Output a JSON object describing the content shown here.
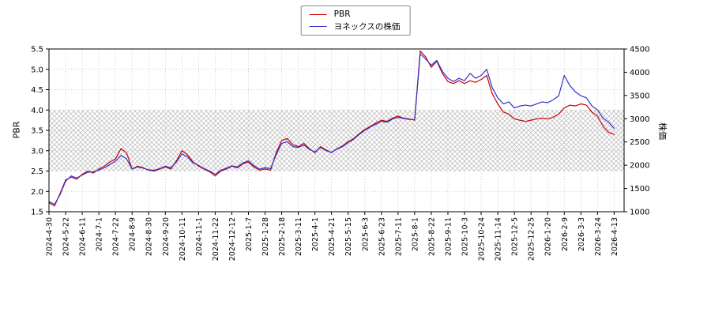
{
  "chart_data": {
    "type": "line",
    "title": "",
    "legend_position": "top-center",
    "grid": true,
    "points_per_tick": 3,
    "x_tick_labels": [
      "2024-4-30",
      "2024-5-22",
      "2024-6-11",
      "2024-7-1",
      "2024-7-22",
      "2024-8-9",
      "2024-8-30",
      "2024-9-20",
      "2024-10-11",
      "2024-11-1",
      "2024-11-22",
      "2024-12-12",
      "2025-1-7",
      "2025-1-28",
      "2025-2-18",
      "2025-3-11",
      "2025-4-1",
      "2025-4-21",
      "2025-5-15",
      "2025-6-3",
      "2025-6-23",
      "2025-7-11",
      "2025-8-1",
      "2025-8-22",
      "2025-9-11",
      "2025-10-3",
      "2025-10-24",
      "2025-11-14",
      "2025-12-5",
      "2025-12-25",
      "2026-1-20",
      "2026-2-9",
      "2026-3-3",
      "2026-3-24",
      "2026-4-13"
    ],
    "left_axis": {
      "label": "PBR",
      "min": 1.5,
      "max": 5.5,
      "tick_step": 0.5,
      "ticks": [
        "1.5",
        "2.0",
        "2.5",
        "3.0",
        "3.5",
        "4.0",
        "4.5",
        "5.0",
        "5.5"
      ]
    },
    "right_axis": {
      "label": "株価",
      "min": 1000,
      "max": 4500,
      "tick_step": 500,
      "ticks": [
        "1000",
        "1500",
        "2000",
        "2500",
        "3000",
        "3500",
        "4000",
        "4500"
      ]
    },
    "hatched_band": {
      "axis": "left",
      "from": 2.5,
      "to": 4.0,
      "pattern": "crosshatch",
      "color": "#b8b8b8"
    },
    "grid_color": "#bbbbbb",
    "series": [
      {
        "name": "PBR",
        "axis": "left",
        "color": "#cc0000",
        "values": [
          1.72,
          1.64,
          1.95,
          2.28,
          2.35,
          2.3,
          2.42,
          2.5,
          2.45,
          2.55,
          2.62,
          2.72,
          2.8,
          3.05,
          2.95,
          2.55,
          2.62,
          2.58,
          2.52,
          2.5,
          2.55,
          2.6,
          2.55,
          2.75,
          3.0,
          2.9,
          2.72,
          2.62,
          2.55,
          2.48,
          2.38,
          2.5,
          2.55,
          2.62,
          2.58,
          2.68,
          2.72,
          2.6,
          2.52,
          2.55,
          2.52,
          2.95,
          3.25,
          3.3,
          3.15,
          3.1,
          3.18,
          3.05,
          2.95,
          3.1,
          3.02,
          2.95,
          3.05,
          3.12,
          3.22,
          3.3,
          3.42,
          3.52,
          3.6,
          3.68,
          3.75,
          3.72,
          3.8,
          3.85,
          3.8,
          3.78,
          3.75,
          5.45,
          5.3,
          5.05,
          5.2,
          4.9,
          4.7,
          4.65,
          4.72,
          4.65,
          4.72,
          4.68,
          4.75,
          4.85,
          4.4,
          4.15,
          3.95,
          3.9,
          3.78,
          3.75,
          3.72,
          3.75,
          3.78,
          3.8,
          3.78,
          3.82,
          3.9,
          4.05,
          4.12,
          4.1,
          4.15,
          4.12,
          3.95,
          3.85,
          3.6,
          3.45,
          3.4
        ]
      },
      {
        "name": "ヨネックスの株価",
        "axis": "right",
        "color": "#3333cc",
        "values": [
          1219,
          1158,
          1368,
          1656,
          1770,
          1726,
          1788,
          1849,
          1858,
          1893,
          1945,
          2015,
          2085,
          2208,
          2138,
          1919,
          1963,
          1936,
          1901,
          1893,
          1928,
          1980,
          1945,
          2068,
          2243,
          2181,
          2050,
          1998,
          1928,
          1875,
          1805,
          1893,
          1936,
          1989,
          1963,
          2050,
          2094,
          1989,
          1919,
          1945,
          1928,
          2225,
          2470,
          2505,
          2400,
          2383,
          2435,
          2339,
          2286,
          2383,
          2313,
          2278,
          2348,
          2400,
          2488,
          2558,
          2663,
          2750,
          2820,
          2881,
          2943,
          2925,
          2995,
          3030,
          3004,
          2986,
          2978,
          4395,
          4281,
          4150,
          4255,
          4019,
          3870,
          3800,
          3870,
          3818,
          3975,
          3870,
          3931,
          4063,
          3669,
          3450,
          3319,
          3363,
          3231,
          3275,
          3293,
          3275,
          3319,
          3363,
          3345,
          3406,
          3494,
          3931,
          3713,
          3581,
          3494,
          3450,
          3275,
          3188,
          3013,
          2925,
          2794
        ]
      }
    ]
  }
}
